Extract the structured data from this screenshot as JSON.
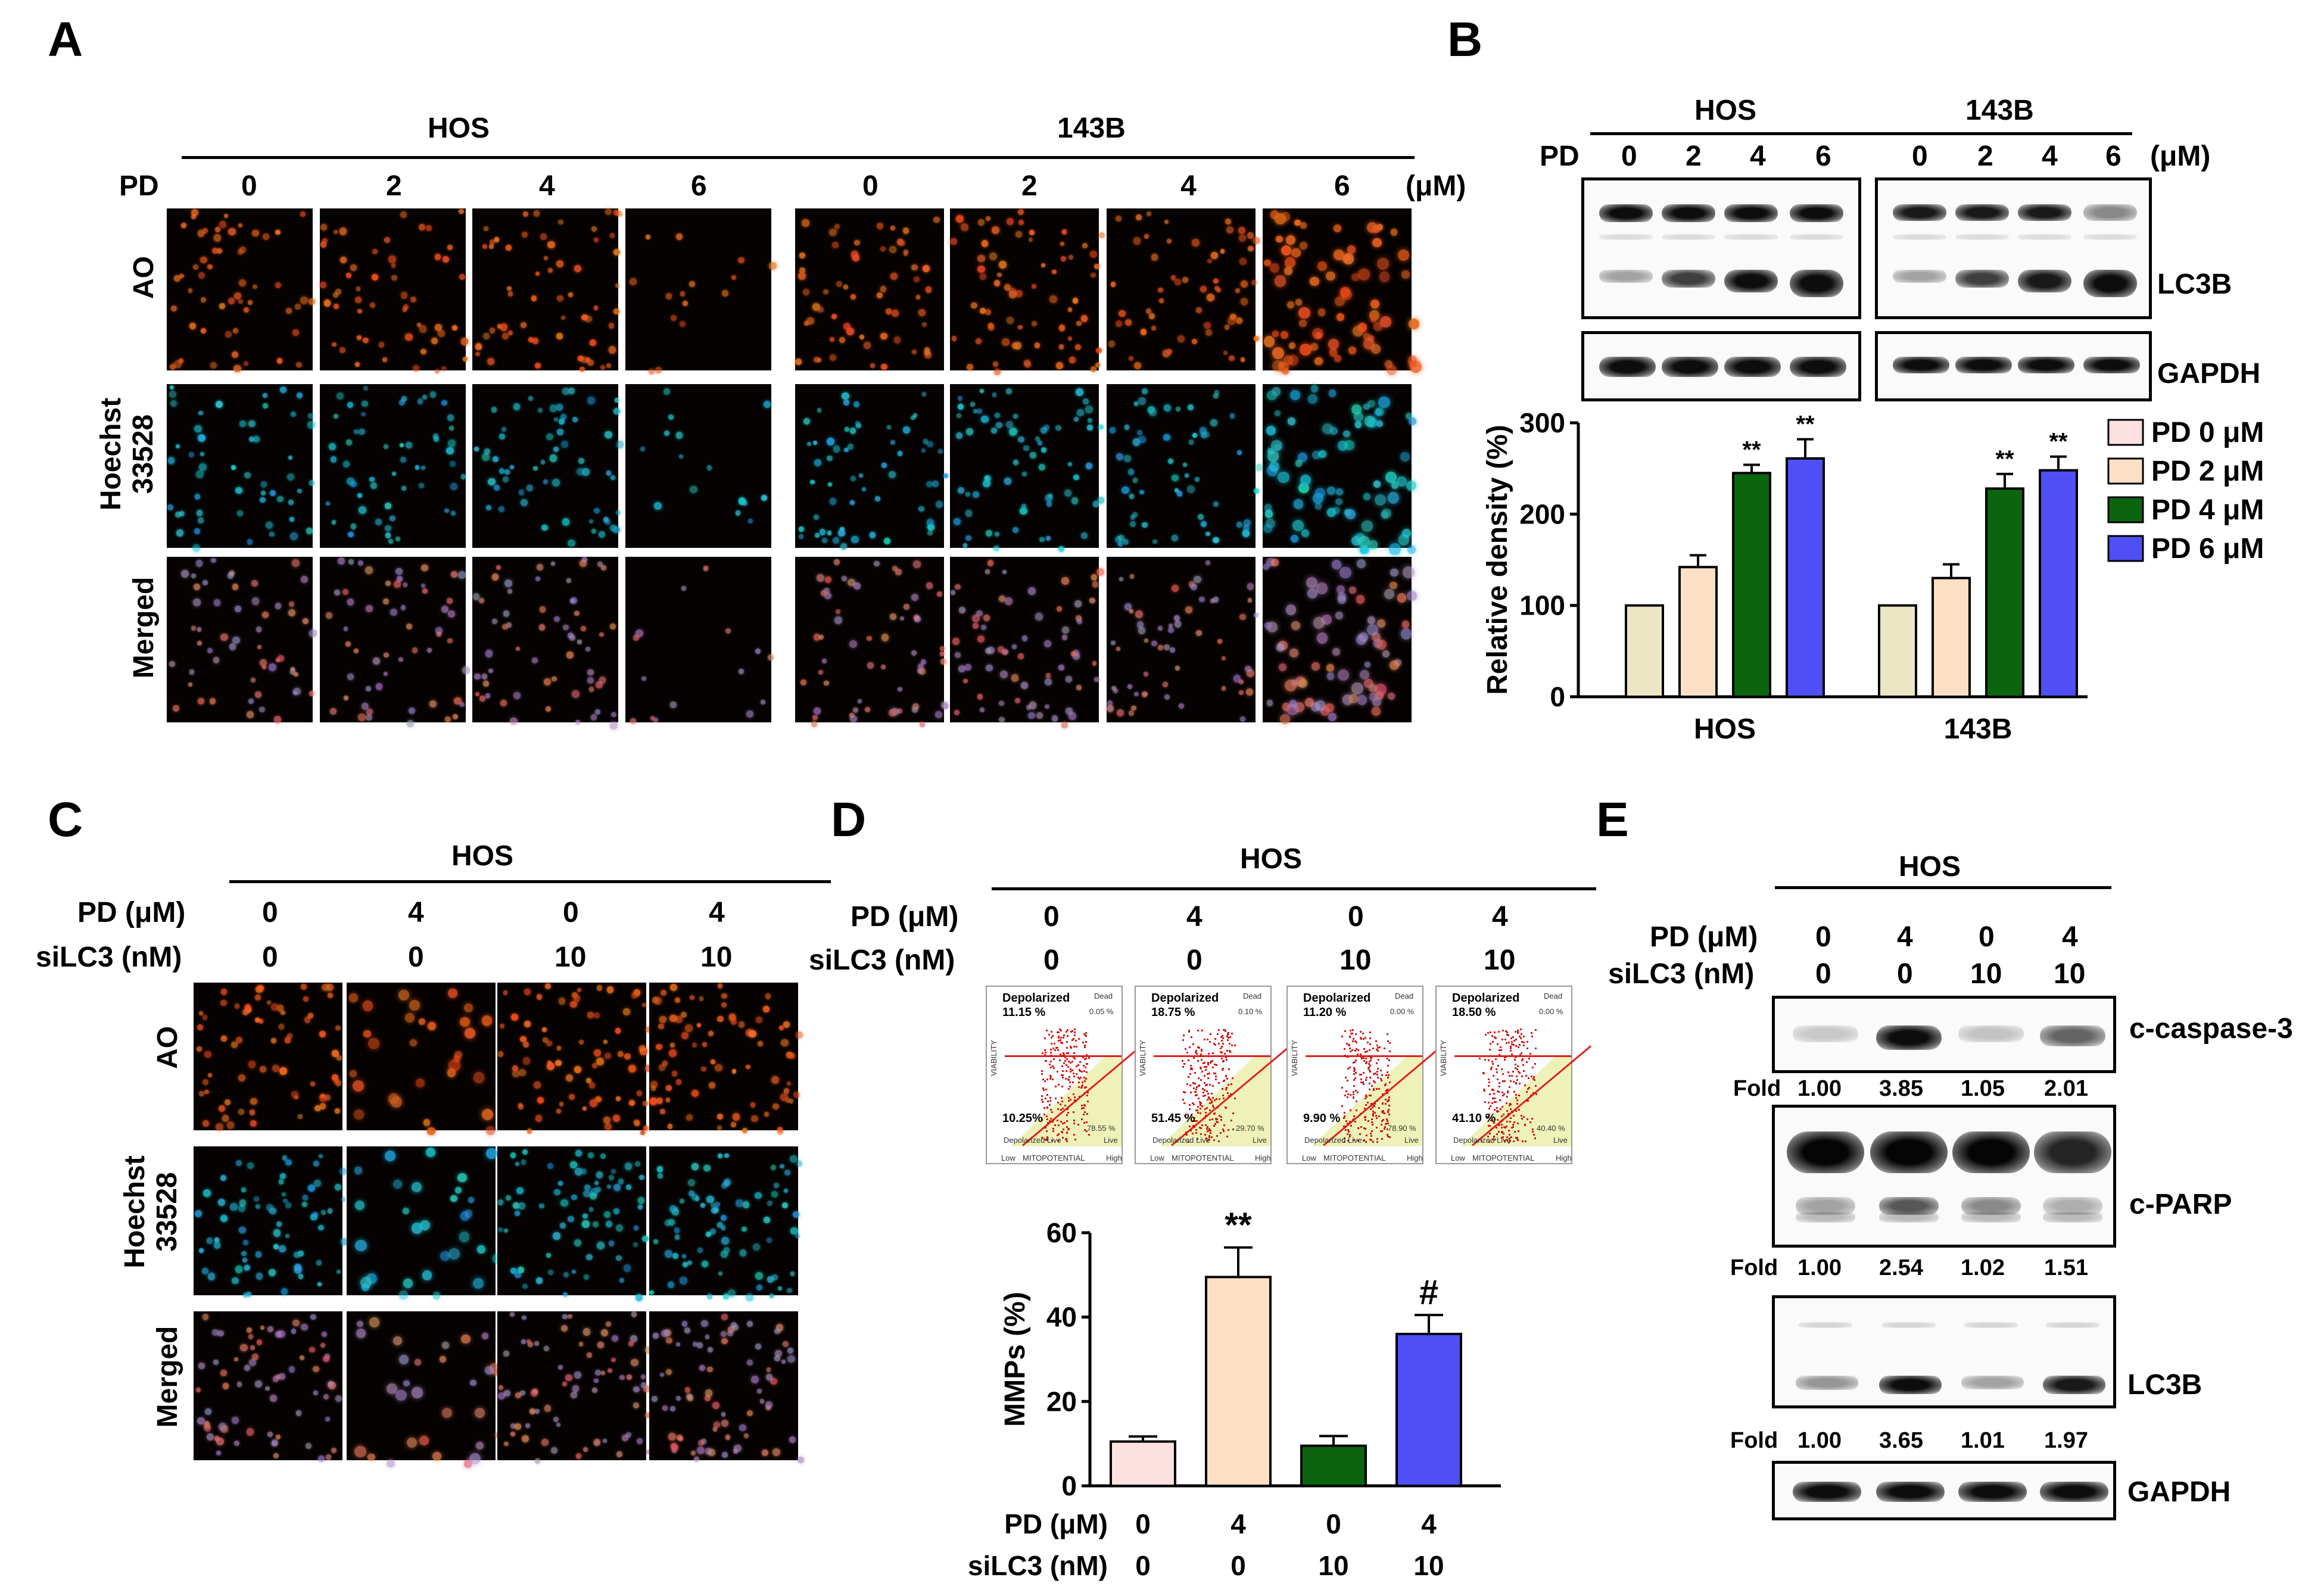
{
  "panels": {
    "A": {
      "letter": "A",
      "group_labels": [
        "HOS",
        "143B"
      ],
      "pd_label": "PD",
      "doses": [
        "0",
        "2",
        "4",
        "6",
        "0",
        "2",
        "4",
        "6"
      ],
      "unit": "(μM)",
      "row_labels": [
        "AO",
        "Hoechst\n33528",
        "Merged"
      ]
    },
    "B": {
      "letter": "B",
      "group_labels": [
        "HOS",
        "143B"
      ],
      "pd_label": "PD",
      "doses": [
        "0",
        "2",
        "4",
        "6",
        "0",
        "2",
        "4",
        "6"
      ],
      "unit": "(μM)",
      "blot_labels": [
        "LC3B",
        "GAPDH"
      ]
    },
    "C": {
      "letter": "C",
      "group_label": "HOS",
      "row_titles": [
        "PD (μM)",
        "siLC3 (nM)"
      ],
      "pd_values": [
        "0",
        "4",
        "0",
        "4"
      ],
      "si_values": [
        "0",
        "0",
        "10",
        "10"
      ],
      "row_labels": [
        "AO",
        "Hoechst\n33528",
        "Merged"
      ]
    },
    "D": {
      "letter": "D",
      "group_label": "HOS",
      "row_titles": [
        "PD (μM)",
        "siLC3 (nM)"
      ],
      "pd_values": [
        "0",
        "4",
        "0",
        "4"
      ],
      "si_values": [
        "0",
        "0",
        "10",
        "10"
      ],
      "flow_plots": [
        {
          "depol_label": "Depolarized",
          "depol": "11.15 %",
          "dead": "0.05 %",
          "lowerleft": "10.25%",
          "live": "78.55 %"
        },
        {
          "depol_label": "Depolarized",
          "depol": "18.75 %",
          "dead": "0.10 %",
          "lowerleft": "51.45 %",
          "live": "29.70 %"
        },
        {
          "depol_label": "Depolarized",
          "depol": "11.20 %",
          "dead": "0.00 %",
          "lowerleft": "9.90 %",
          "live": "78.90 %"
        },
        {
          "depol_label": "Depolarized",
          "depol": "18.50 %",
          "dead": "0.00 %",
          "lowerleft": "41.10 %",
          "live": "40.40 %"
        }
      ],
      "flow_axis": {
        "x": "MITOPOTENTIAL",
        "y": "VIABILITY",
        "dead": "Dead",
        "live": "Live",
        "depol_live": "Depolarized Live",
        "low": "Low",
        "high": "High"
      },
      "bottom_row_titles": [
        "PD (μM)",
        "siLC3 (nM)"
      ]
    },
    "E": {
      "letter": "E",
      "group_label": "HOS",
      "row_titles": [
        "PD (μM)",
        "siLC3 (nM)"
      ],
      "pd_values": [
        "0",
        "4",
        "0",
        "4"
      ],
      "si_values": [
        "0",
        "0",
        "10",
        "10"
      ],
      "blot_labels": [
        "c-caspase-3",
        "c-PARP",
        "LC3B",
        "GAPDH"
      ],
      "fold_label": "Fold",
      "fold_caspase": [
        "1.00",
        "3.85",
        "1.05",
        "2.01"
      ],
      "fold_parp": [
        "1.00",
        "2.54",
        "1.02",
        "1.51"
      ],
      "fold_lc3b": [
        "1.00",
        "3.65",
        "1.01",
        "1.97"
      ]
    }
  },
  "chart_data": [
    {
      "id": "B",
      "type": "bar",
      "categories": [
        "HOS",
        "143B"
      ],
      "series": [
        {
          "name": "PD 0 μM",
          "values": [
            100,
            100
          ],
          "errors": [
            0,
            0
          ],
          "color": "#ece6c4"
        },
        {
          "name": "PD 2 μM",
          "values": [
            142,
            130
          ],
          "errors": [
            13,
            15
          ],
          "color": "#fce0c6"
        },
        {
          "name": "PD 4 μM",
          "values": [
            245,
            228
          ],
          "errors": [
            9,
            16
          ],
          "color": "#0b650f"
        },
        {
          "name": "PD 6 μM",
          "values": [
            261,
            248
          ],
          "errors": [
            21,
            15
          ],
          "color": "#4f4ff5"
        }
      ],
      "legend_swatch_pd0": "#fde0e0",
      "annotations": [
        [
          "",
          "",
          "**",
          "**"
        ],
        [
          "",
          "",
          "**",
          "**"
        ]
      ],
      "ylabel": "Relative density (%)",
      "ylim": [
        0,
        300
      ],
      "yticks": [
        0,
        100,
        200,
        300
      ],
      "legend": "right"
    },
    {
      "id": "D",
      "type": "bar",
      "categories": [
        "0/0",
        "4/0",
        "0/10",
        "4/10"
      ],
      "values": [
        10.5,
        49.5,
        9.5,
        36
      ],
      "errors": [
        1.2,
        7,
        2.3,
        4.5
      ],
      "colors": [
        "#fde0e0",
        "#fde0c4",
        "#0b650f",
        "#4f4ff5"
      ],
      "annotations": [
        "",
        "**",
        "",
        "#"
      ],
      "ylabel": "MMPs (%)",
      "ylim": [
        0,
        60
      ],
      "yticks": [
        0,
        20,
        40,
        60
      ]
    }
  ]
}
